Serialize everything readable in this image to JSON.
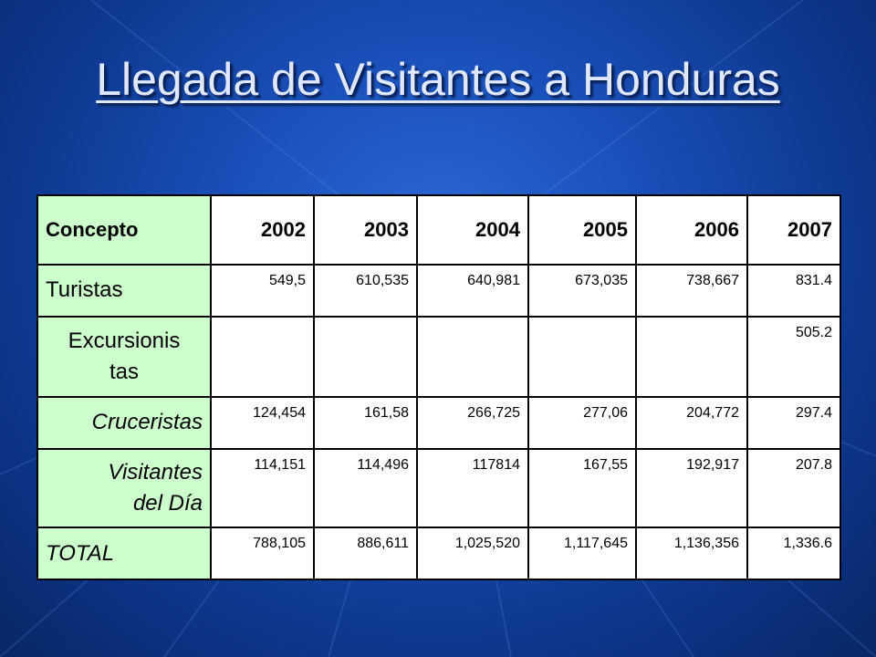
{
  "slide": {
    "title": "Llegada de Visitantes a Honduras"
  },
  "table": {
    "header": {
      "concept": "Concepto",
      "years": [
        "2002",
        "2003",
        "2004",
        "2005",
        "2006",
        "2007"
      ]
    },
    "rows": [
      {
        "label": "Turistas",
        "values": [
          "549,5",
          "610,535",
          "640,981",
          "673,035",
          "738,667",
          "831.4"
        ]
      },
      {
        "label_lines": [
          "Excursionis",
          "tas"
        ],
        "values": [
          "",
          "",
          "",
          "",
          "",
          "505.2"
        ]
      },
      {
        "label": "Cruceristas",
        "values": [
          "124,454",
          "161,58",
          "266,725",
          "277,06",
          "204,772",
          "297.4"
        ]
      },
      {
        "label_lines": [
          "Visitantes",
          "del Día"
        ],
        "values": [
          "114,151",
          "114,496",
          "117814",
          "167,55",
          "192,917",
          "207.8"
        ]
      },
      {
        "label": "TOTAL",
        "values": [
          "788,105",
          "886,611",
          "1,025,520",
          "1,117,645",
          "1,136,356",
          "1,336.6"
        ]
      }
    ]
  },
  "colors": {
    "background": "#1a4fb8",
    "label_cell": "#ccffcc",
    "title_text": "#dfe8ff"
  }
}
